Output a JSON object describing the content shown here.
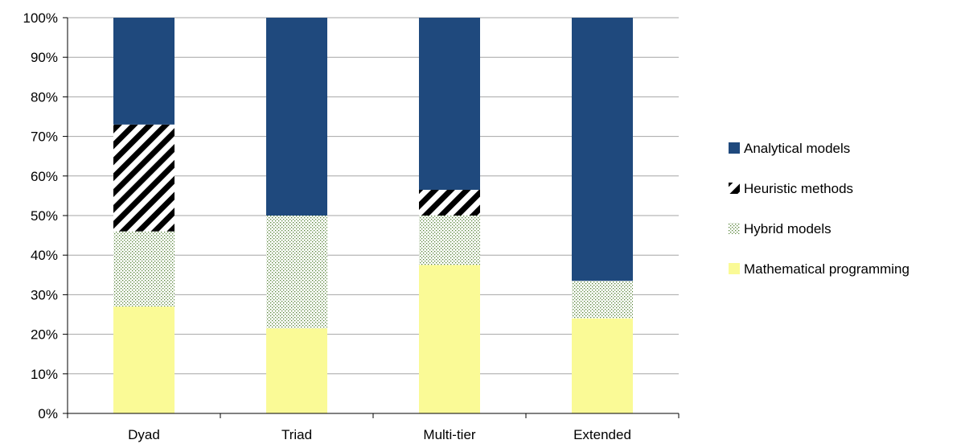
{
  "chart_data": {
    "type": "bar",
    "stacked": true,
    "percent": true,
    "categories": [
      "Dyad",
      "Triad",
      "Multi-tier",
      "Extended"
    ],
    "series": [
      {
        "name": "Mathematical programming",
        "values": [
          27,
          21.5,
          37.5,
          24
        ],
        "color": "#fafa96",
        "pattern": "solid"
      },
      {
        "name": "Hybrid models",
        "values": [
          19,
          28.5,
          12.5,
          9.5
        ],
        "color": "#548235",
        "pattern": "dots"
      },
      {
        "name": "Heuristic methods",
        "values": [
          27,
          0,
          6.5,
          0
        ],
        "color": "#000000",
        "pattern": "diagonal-stripes"
      },
      {
        "name": "Analytical models",
        "values": [
          27,
          50,
          43.5,
          66.5
        ],
        "color": "#1f497d",
        "pattern": "solid"
      }
    ],
    "legend_order": [
      "Analytical models",
      "Heuristic methods",
      "Hybrid models",
      "Mathematical programming"
    ],
    "y_ticks": [
      "0%",
      "10%",
      "20%",
      "30%",
      "40%",
      "50%",
      "60%",
      "70%",
      "80%",
      "90%",
      "100%"
    ],
    "ylim": [
      0,
      100
    ],
    "grid": true,
    "legend_position": "right",
    "title": "",
    "xlabel": "",
    "ylabel": ""
  }
}
